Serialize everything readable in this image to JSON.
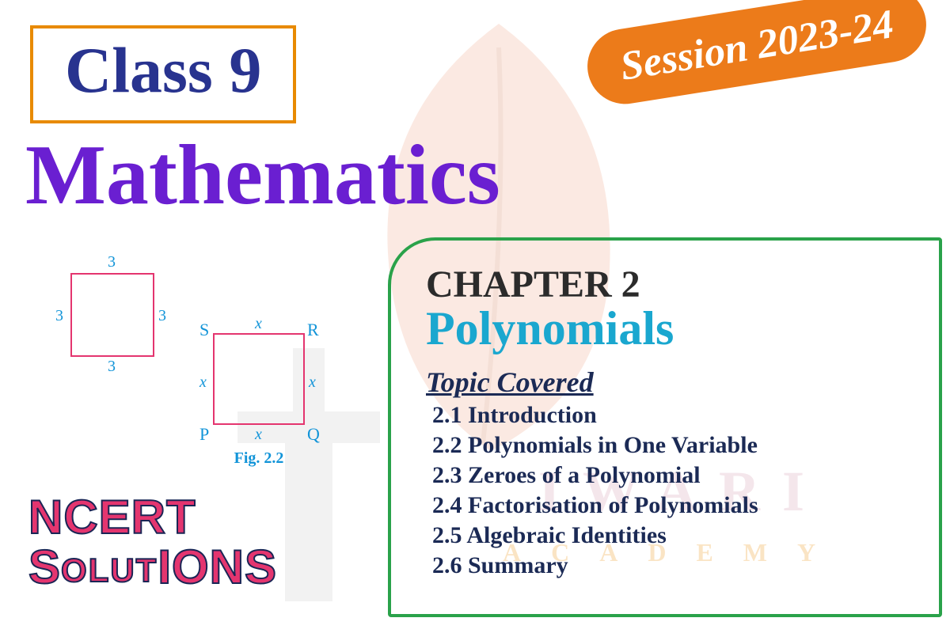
{
  "class_box": {
    "text": "Class 9",
    "border_color": "#e88a00",
    "text_color": "#28338f"
  },
  "session_badge": {
    "text": "Session 2023-24",
    "bg_color": "#ec7b1a",
    "text_color": "#ffffff"
  },
  "subject": {
    "text": "Mathematics",
    "color": "#6a1fd1"
  },
  "chapter_panel": {
    "border_color": "#2aa24a",
    "label": "CHAPTER 2",
    "label_color": "#2b2b2b",
    "title": "Polynomials",
    "title_color": "#1aa7cf",
    "topics_heading": "Topic Covered",
    "topics_heading_color": "#1b2a55",
    "topics": [
      "2.1 Introduction",
      "2.2 Polynomials in One Variable",
      "2.3 Zeroes of a Polynomial",
      "2.4 Factorisation of Polynomials",
      "2.5 Algebraic Identities",
      "2.6 Summary"
    ],
    "topic_color": "#1b2a55"
  },
  "ncert": {
    "line1": "NCERT",
    "line2_caps_1": "S",
    "line2_small": "OLUT",
    "line2_caps_2": "IONS",
    "color": "#e4356f"
  },
  "watermark": {
    "iwari": "IWARI",
    "academy": "ACADEMY",
    "leaf_fill": "#f2b498",
    "leaf_stem": "#b8b8b8"
  },
  "diagram_a": {
    "side_label": "3",
    "stroke": "#e4356f",
    "label_color": "#1294d8",
    "size": 110
  },
  "diagram_b": {
    "side_label": "x",
    "stroke": "#e4356f",
    "label_color": "#1294d8",
    "vertex_S": "S",
    "vertex_R": "R",
    "vertex_P": "P",
    "vertex_Q": "Q",
    "caption": "Fig. 2.2",
    "size": 110
  }
}
